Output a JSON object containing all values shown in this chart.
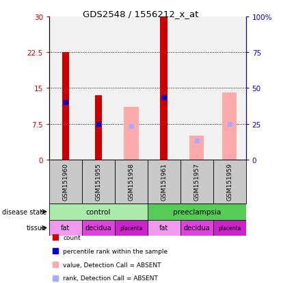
{
  "title": "GDS2548 / 1556212_x_at",
  "samples": [
    "GSM151960",
    "GSM151955",
    "GSM151958",
    "GSM151961",
    "GSM151957",
    "GSM151959"
  ],
  "count_values": [
    22.5,
    13.5,
    0,
    30,
    0,
    0
  ],
  "percentile_rank": [
    12.0,
    7.5,
    0,
    13.0,
    0,
    0
  ],
  "absent_value": [
    0,
    0,
    11.0,
    0,
    5.0,
    14.0
  ],
  "absent_rank": [
    0,
    0,
    7.0,
    0,
    4.0,
    7.5
  ],
  "ylim_left": [
    0,
    30
  ],
  "ylim_right": [
    0,
    100
  ],
  "yticks_left": [
    0,
    7.5,
    15,
    22.5,
    30
  ],
  "yticks_right": [
    0,
    25,
    50,
    75,
    100
  ],
  "ytick_labels_left": [
    "0",
    "7.5",
    "15",
    "22.5",
    "30"
  ],
  "ytick_labels_right": [
    "0",
    "25",
    "50",
    "75",
    "100%"
  ],
  "color_red": "#cc0000",
  "color_blue": "#0000cc",
  "color_pink": "#ffaaaa",
  "color_lightblue": "#aaaaff",
  "color_bg_sample": "#c8c8c8",
  "color_control_light": "#aaeaaa",
  "color_preeclampsia_dark": "#55cc55",
  "color_tissue_fat": "#ee99ee",
  "color_tissue_decidua": "#dd44dd",
  "color_tissue_placenta": "#cc22cc",
  "disease_state_groups": [
    [
      "control",
      0,
      3
    ],
    [
      "preeclampsia",
      3,
      6
    ]
  ],
  "tissue": [
    "fat",
    "decidua",
    "placenta",
    "fat",
    "decidua",
    "placenta"
  ],
  "legend_items": [
    [
      "#cc0000",
      "count"
    ],
    [
      "#0000cc",
      "percentile rank within the sample"
    ],
    [
      "#ffaaaa",
      "value, Detection Call = ABSENT"
    ],
    [
      "#aaaaff",
      "rank, Detection Call = ABSENT"
    ]
  ]
}
